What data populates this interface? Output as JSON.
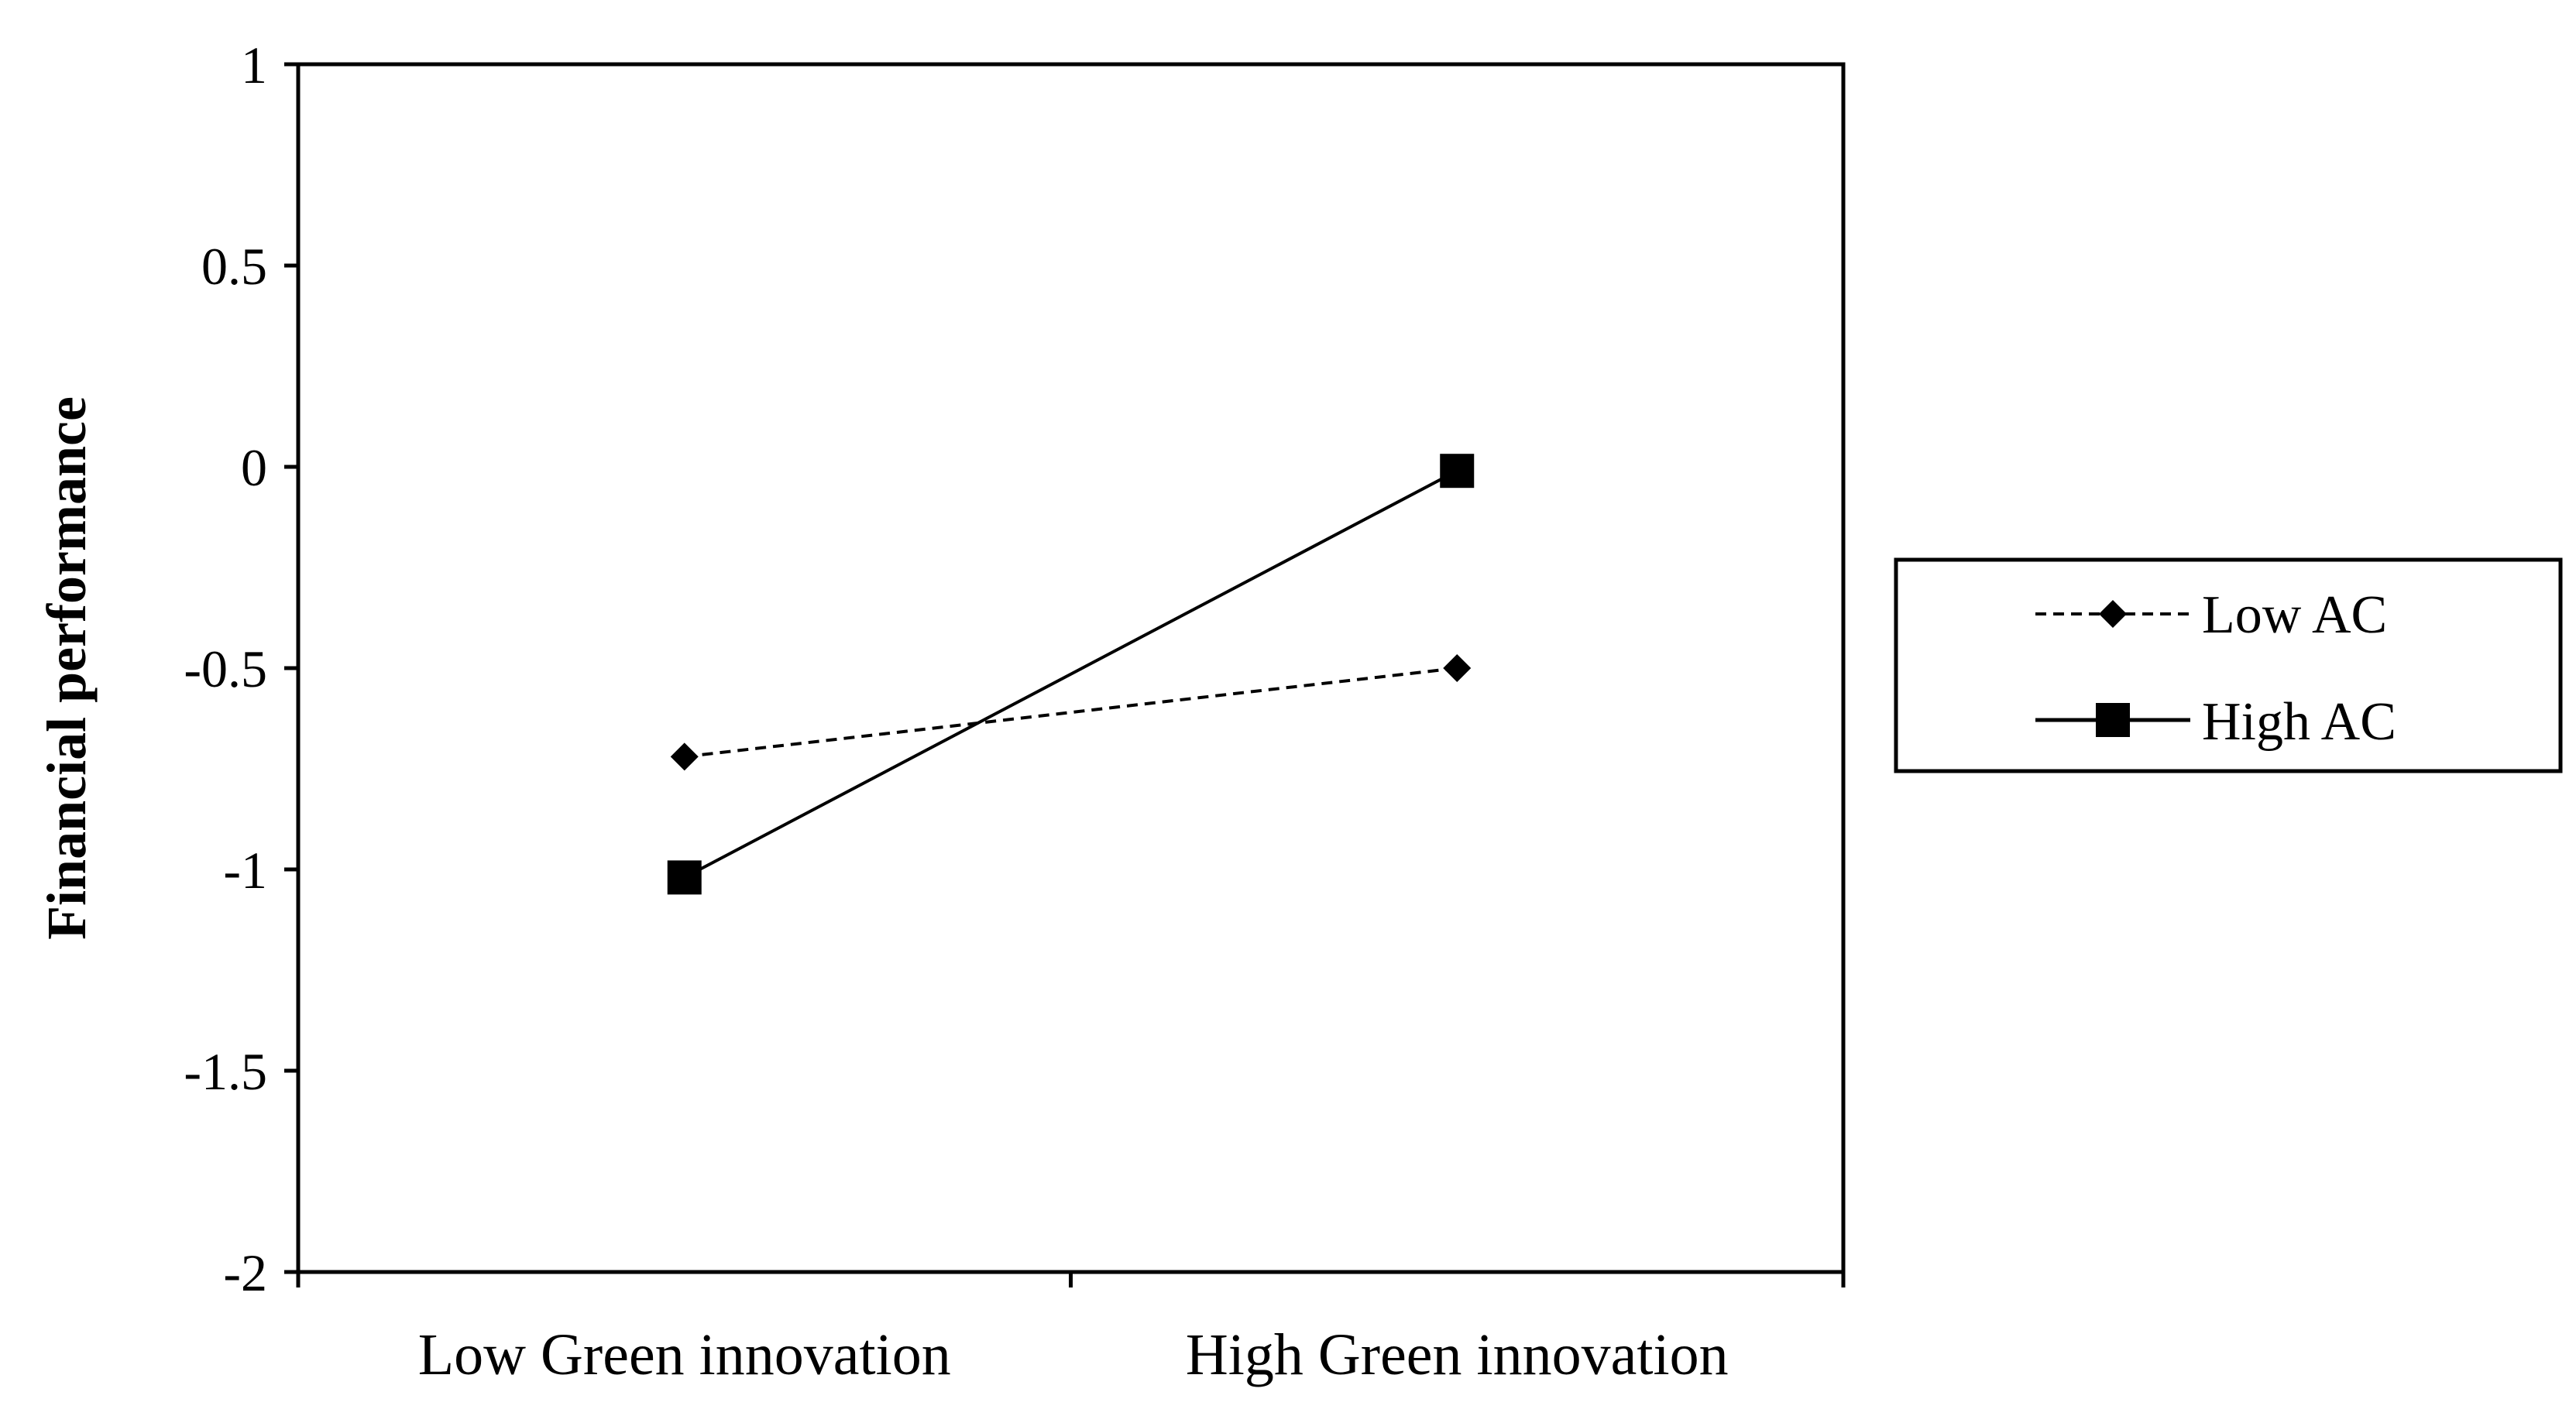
{
  "chart_data": {
    "type": "line",
    "title": "",
    "xlabel": "",
    "ylabel": "Financial performance",
    "categories": [
      "Low Green innovation",
      "High Green innovation"
    ],
    "ylim": [
      -2,
      1
    ],
    "yticks": [
      "1",
      "0.5",
      "0",
      "-0.5",
      "-1",
      "-1.5",
      "-2"
    ],
    "ytick_values": [
      1,
      0.5,
      0,
      -0.5,
      -1,
      -1.5,
      -2
    ],
    "grid": false,
    "legend_position": "right",
    "series": [
      {
        "name": "Low AC",
        "values": [
          -0.72,
          -0.5
        ],
        "marker": "diamond",
        "line_style": "dashed",
        "color": "#000000"
      },
      {
        "name": "High AC",
        "values": [
          -1.02,
          -0.01
        ],
        "marker": "square",
        "line_style": "solid",
        "color": "#000000"
      }
    ]
  }
}
